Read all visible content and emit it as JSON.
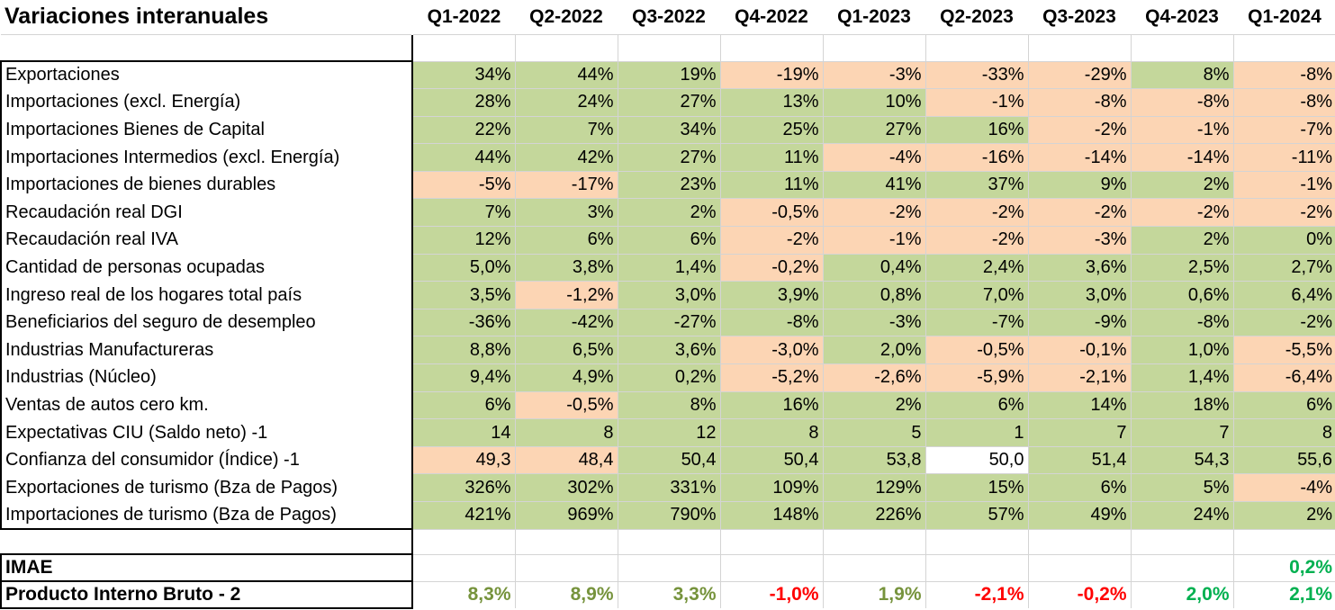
{
  "title": "Variaciones interanuales",
  "quarters": [
    "Q1-2022",
    "Q2-2022",
    "Q3-2022",
    "Q4-2022",
    "Q1-2023",
    "Q2-2023",
    "Q3-2023",
    "Q4-2023",
    "Q1-2024"
  ],
  "colors": {
    "green_fill": "#c4d79b",
    "orange_fill": "#fcd5b4",
    "olive_text": "#76933c",
    "red_text": "#ff0000",
    "green_text": "#00b050"
  },
  "rows": [
    {
      "label": "Exportaciones",
      "values": [
        "34%",
        "44%",
        "19%",
        "-19%",
        "-3%",
        "-33%",
        "-29%",
        "8%",
        "-8%"
      ],
      "fills": [
        "g",
        "g",
        "g",
        "o",
        "o",
        "o",
        "o",
        "g",
        "o"
      ]
    },
    {
      "label": "Importaciones (excl. Energía)",
      "values": [
        "28%",
        "24%",
        "27%",
        "13%",
        "10%",
        "-1%",
        "-8%",
        "-8%",
        "-8%"
      ],
      "fills": [
        "g",
        "g",
        "g",
        "g",
        "g",
        "o",
        "o",
        "o",
        "o"
      ]
    },
    {
      "label": "Importaciones Bienes de Capital",
      "values": [
        "22%",
        "7%",
        "34%",
        "25%",
        "27%",
        "16%",
        "-2%",
        "-1%",
        "-7%"
      ],
      "fills": [
        "g",
        "g",
        "g",
        "g",
        "g",
        "g",
        "o",
        "o",
        "o"
      ]
    },
    {
      "label": "Importaciones Intermedios (excl. Energía)",
      "values": [
        "44%",
        "42%",
        "27%",
        "11%",
        "-4%",
        "-16%",
        "-14%",
        "-14%",
        "-11%"
      ],
      "fills": [
        "g",
        "g",
        "g",
        "g",
        "o",
        "o",
        "o",
        "o",
        "o"
      ]
    },
    {
      "label": "Importaciones de bienes durables",
      "values": [
        "-5%",
        "-17%",
        "23%",
        "11%",
        "41%",
        "37%",
        "9%",
        "2%",
        "-1%"
      ],
      "fills": [
        "o",
        "o",
        "g",
        "g",
        "g",
        "g",
        "g",
        "g",
        "o"
      ]
    },
    {
      "label": "Recaudación real DGI",
      "values": [
        "7%",
        "3%",
        "2%",
        "-0,5%",
        "-2%",
        "-2%",
        "-2%",
        "-2%",
        "-2%"
      ],
      "fills": [
        "g",
        "g",
        "g",
        "o",
        "o",
        "o",
        "o",
        "o",
        "o"
      ]
    },
    {
      "label": "Recaudación real IVA",
      "values": [
        "12%",
        "6%",
        "6%",
        "-2%",
        "-1%",
        "-2%",
        "-3%",
        "2%",
        "0%"
      ],
      "fills": [
        "g",
        "g",
        "g",
        "o",
        "o",
        "o",
        "o",
        "g",
        "g"
      ]
    },
    {
      "label": "Cantidad de personas ocupadas",
      "values": [
        "5,0%",
        "3,8%",
        "1,4%",
        "-0,2%",
        "0,4%",
        "2,4%",
        "3,6%",
        "2,5%",
        "2,7%"
      ],
      "fills": [
        "g",
        "g",
        "g",
        "o",
        "g",
        "g",
        "g",
        "g",
        "g"
      ]
    },
    {
      "label": "Ingreso real de los hogares total país",
      "values": [
        "3,5%",
        "-1,2%",
        "3,0%",
        "3,9%",
        "0,8%",
        "7,0%",
        "3,0%",
        "0,6%",
        "6,4%"
      ],
      "fills": [
        "g",
        "o",
        "g",
        "g",
        "g",
        "g",
        "g",
        "g",
        "g"
      ]
    },
    {
      "label": "Beneficiarios del seguro de desempleo",
      "values": [
        "-36%",
        "-42%",
        "-27%",
        "-8%",
        "-3%",
        "-7%",
        "-9%",
        "-8%",
        "-2%"
      ],
      "fills": [
        "g",
        "g",
        "g",
        "g",
        "g",
        "g",
        "g",
        "g",
        "g"
      ]
    },
    {
      "label": "Industrias Manufactureras",
      "values": [
        "8,8%",
        "6,5%",
        "3,6%",
        "-3,0%",
        "2,0%",
        "-0,5%",
        "-0,1%",
        "1,0%",
        "-5,5%"
      ],
      "fills": [
        "g",
        "g",
        "g",
        "o",
        "g",
        "o",
        "o",
        "g",
        "o"
      ]
    },
    {
      "label": "Industrias (Núcleo)",
      "values": [
        "9,4%",
        "4,9%",
        "0,2%",
        "-5,2%",
        "-2,6%",
        "-5,9%",
        "-2,1%",
        "1,4%",
        "-6,4%"
      ],
      "fills": [
        "g",
        "g",
        "g",
        "o",
        "o",
        "o",
        "o",
        "g",
        "o"
      ]
    },
    {
      "label": "Ventas de autos cero km.",
      "values": [
        "6%",
        "-0,5%",
        "8%",
        "16%",
        "2%",
        "6%",
        "14%",
        "18%",
        "6%"
      ],
      "fills": [
        "g",
        "o",
        "g",
        "g",
        "g",
        "g",
        "g",
        "g",
        "g"
      ]
    },
    {
      "label": "Expectativas CIU (Saldo neto) -1",
      "values": [
        "14",
        "8",
        "12",
        "8",
        "5",
        "1",
        "7",
        "7",
        "8"
      ],
      "fills": [
        "g",
        "g",
        "g",
        "g",
        "g",
        "g",
        "g",
        "g",
        "g"
      ]
    },
    {
      "label": "Confianza del consumidor (Índice) -1",
      "values": [
        "49,3",
        "48,4",
        "50,4",
        "50,4",
        "53,8",
        "50,0",
        "51,4",
        "54,3",
        "55,6"
      ],
      "fills": [
        "o",
        "o",
        "g",
        "g",
        "g",
        "w",
        "g",
        "g",
        "g"
      ]
    },
    {
      "label": "Exportaciones de turismo (Bza de Pagos)",
      "values": [
        "326%",
        "302%",
        "331%",
        "109%",
        "129%",
        "15%",
        "6%",
        "5%",
        "-4%"
      ],
      "fills": [
        "g",
        "g",
        "g",
        "g",
        "g",
        "g",
        "g",
        "g",
        "o"
      ]
    },
    {
      "label": "Importaciones de turismo (Bza de Pagos)",
      "values": [
        "421%",
        "969%",
        "790%",
        "148%",
        "226%",
        "57%",
        "49%",
        "24%",
        "2%"
      ],
      "fills": [
        "g",
        "g",
        "g",
        "g",
        "g",
        "g",
        "g",
        "g",
        "g"
      ]
    }
  ],
  "summary": [
    {
      "label": "IMAE",
      "values": [
        "",
        "",
        "",
        "",
        "",
        "",
        "",
        "",
        "0,2%"
      ],
      "text_colors": [
        "",
        "",
        "",
        "",
        "",
        "",
        "",
        "",
        "green"
      ]
    },
    {
      "label": "Producto Interno Bruto - 2",
      "values": [
        "8,3%",
        "8,9%",
        "3,3%",
        "-1,0%",
        "1,9%",
        "-2,1%",
        "-0,2%",
        "2,0%",
        "2,1%"
      ],
      "text_colors": [
        "olive",
        "olive",
        "olive",
        "red",
        "olive",
        "red",
        "red",
        "green",
        "green"
      ]
    }
  ]
}
